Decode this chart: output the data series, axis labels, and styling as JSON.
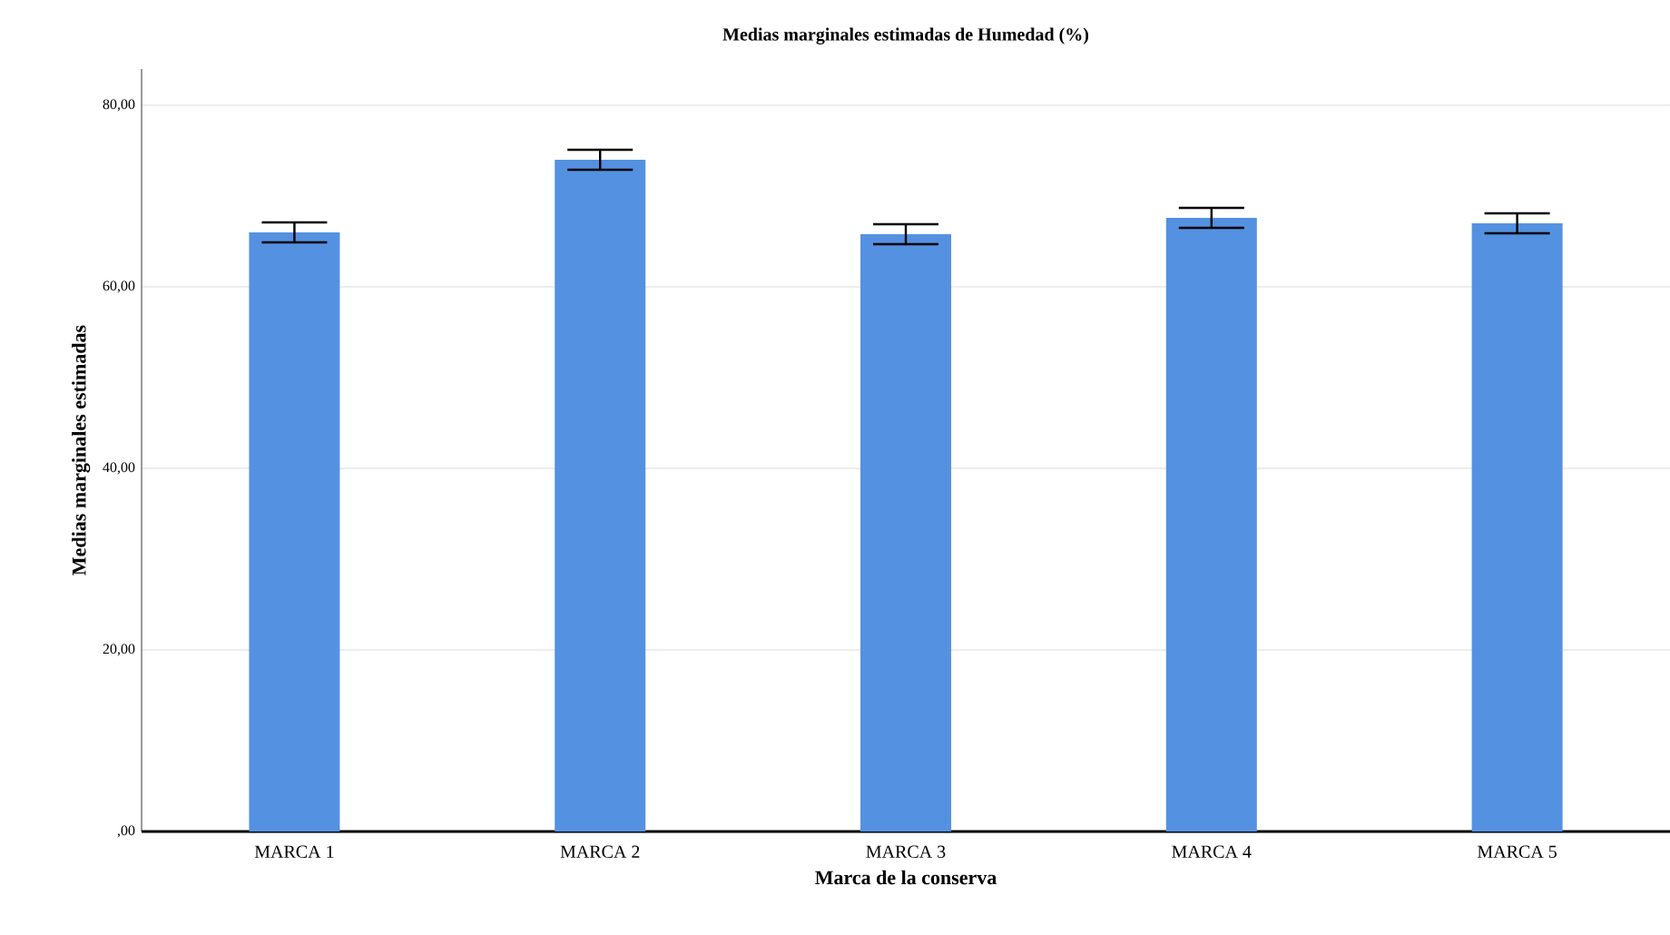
{
  "chart_data": {
    "type": "bar",
    "title": "Medias marginales estimadas de Humedad (%)",
    "xlabel": "Marca de la conserva",
    "ylabel": "Medias marginales estimadas",
    "categories": [
      "MARCA 1",
      "MARCA 2",
      "MARCA 3",
      "MARCA 4",
      "MARCA 5"
    ],
    "values": [
      66.0,
      74.0,
      65.8,
      67.6,
      67.0
    ],
    "errors": [
      1.1,
      1.1,
      1.1,
      1.1,
      1.1
    ],
    "color": "#5591e1",
    "ylim": [
      0,
      84
    ],
    "yticks": [
      {
        "value": 0,
        "label": ",00"
      },
      {
        "value": 20,
        "label": "20,00"
      },
      {
        "value": 40,
        "label": "40,00"
      },
      {
        "value": 60,
        "label": "60,00"
      },
      {
        "value": 80,
        "label": "80,00"
      }
    ],
    "grid": "y"
  }
}
